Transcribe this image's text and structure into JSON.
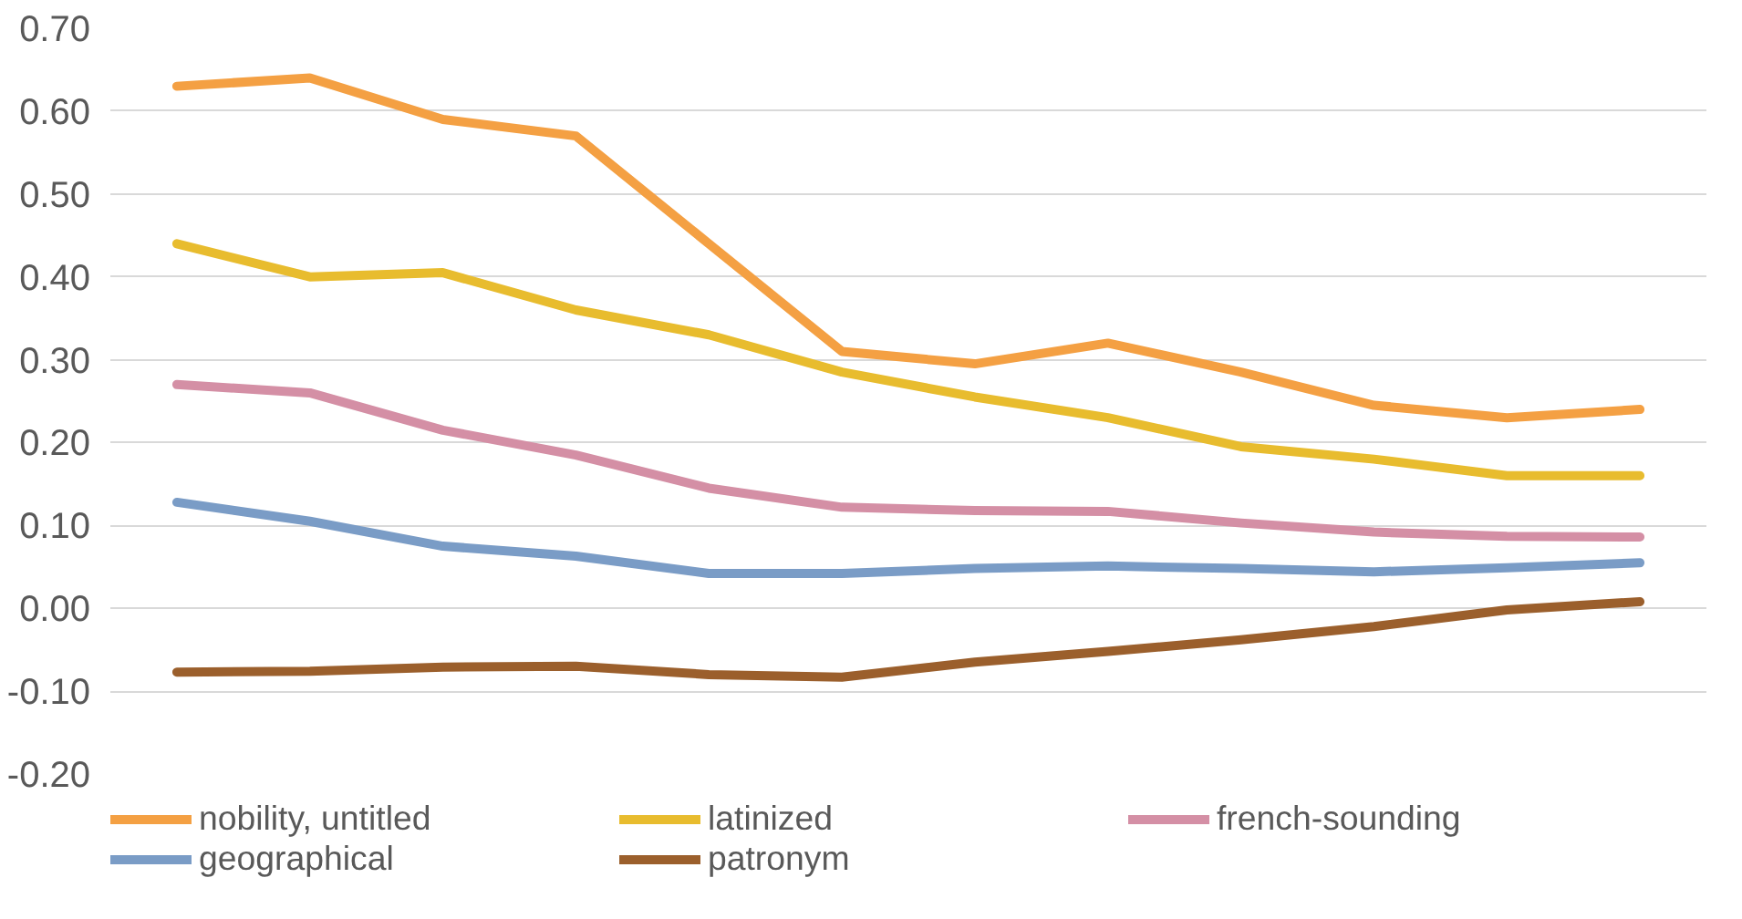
{
  "chart_data": {
    "type": "line",
    "categories": [
      null,
      null,
      null,
      null,
      null,
      null,
      null,
      null,
      null,
      null,
      null,
      null
    ],
    "ylim": [
      -0.2,
      0.7
    ],
    "yticks": [
      {
        "value": -0.2,
        "label": "-0.20"
      },
      {
        "value": -0.1,
        "label": "-0.10"
      },
      {
        "value": 0,
        "label": "0.00"
      },
      {
        "value": 0.1,
        "label": "0.10"
      },
      {
        "value": 0.2,
        "label": "0.20"
      },
      {
        "value": 0.3,
        "label": "0.30"
      },
      {
        "value": 0.4,
        "label": "0.40"
      },
      {
        "value": 0.5,
        "label": "0.50"
      },
      {
        "value": 0.6,
        "label": "0.60"
      },
      {
        "value": 0.7,
        "label": "0.70"
      }
    ],
    "grid": "y",
    "legend": "bottom",
    "tick_labels": "y",
    "marker": "none",
    "line_style": "solid",
    "series": [
      {
        "name": "nobility, untitled",
        "color": "#f4a043",
        "values": [
          0.63,
          0.64,
          0.59,
          0.57,
          0.44,
          0.31,
          0.295,
          0.32,
          0.285,
          0.245,
          0.23,
          0.24
        ]
      },
      {
        "name": "latinized",
        "color": "#e8bc2e",
        "values": [
          0.44,
          0.4,
          0.405,
          0.36,
          0.33,
          0.285,
          0.255,
          0.23,
          0.195,
          0.18,
          0.16,
          0.16
        ]
      },
      {
        "name": "french-sounding",
        "color": "#d48fa5",
        "values": [
          0.27,
          0.26,
          0.215,
          0.185,
          0.145,
          0.122,
          0.118,
          0.117,
          0.103,
          0.092,
          0.087,
          0.086
        ]
      },
      {
        "name": "geographical",
        "color": "#7a9cc6",
        "values": [
          0.128,
          0.105,
          0.075,
          0.063,
          0.042,
          0.042,
          0.048,
          0.051,
          0.048,
          0.044,
          0.049,
          0.055
        ]
      },
      {
        "name": "patronym",
        "color": "#9b5f2c",
        "values": [
          -0.077,
          -0.076,
          -0.071,
          -0.07,
          -0.08,
          -0.083,
          -0.065,
          -0.052,
          -0.038,
          -0.022,
          -0.002,
          0.008
        ]
      }
    ]
  }
}
